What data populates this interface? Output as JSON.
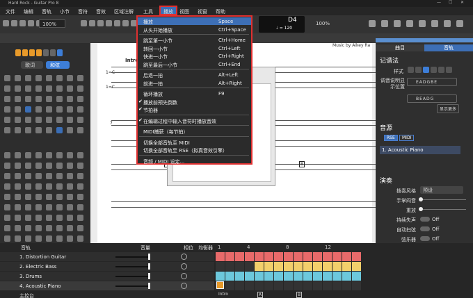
{
  "window": {
    "title": "Hard Rock - Guitar Pro 8"
  },
  "menu_bar": [
    "文件",
    "编辑",
    "音轨",
    "小节",
    "音符",
    "音效",
    "区域注解",
    "工具",
    "播放",
    "视图",
    "视窗",
    "帮助"
  ],
  "toolbar": {
    "zoom": "100%",
    "zoom_score": "100%",
    "pitch": "D4",
    "tempo": "♩ = 120"
  },
  "left_panel": {
    "lyrics_button": "歌词",
    "chord_button": "和弦"
  },
  "score": {
    "credit": "Music by Aikey Ra",
    "section": "Intro",
    "key": "1=C",
    "key2": "1=C",
    "bar_number": "7",
    "marker_a": "A",
    "marker_b": "B"
  },
  "play_menu": {
    "groups": [
      [
        {
          "label": "播放",
          "shortcut": "Space",
          "checked": false,
          "highlighted": true
        },
        {
          "label": "从头开始播放",
          "shortcut": "Ctrl+Space",
          "checked": false,
          "highlighted": false
        }
      ],
      [
        {
          "label": "跳至第一小节",
          "shortcut": "Ctrl+Home",
          "checked": false,
          "highlighted": false
        },
        {
          "label": "转回一小节",
          "shortcut": "Ctrl+Left",
          "checked": false,
          "highlighted": false
        },
        {
          "label": "快进一小节",
          "shortcut": "Ctrl+Right",
          "checked": false,
          "highlighted": false
        },
        {
          "label": "跳至最后一小节",
          "shortcut": "Ctrl+End",
          "checked": false,
          "highlighted": false
        }
      ],
      [
        {
          "label": "后退一拍",
          "shortcut": "Alt+Left",
          "checked": false,
          "highlighted": false
        },
        {
          "label": "前进一拍",
          "shortcut": "Alt+Right",
          "checked": false,
          "highlighted": false
        }
      ],
      [
        {
          "label": "循环播放",
          "shortcut": "F9",
          "checked": false,
          "highlighted": false
        },
        {
          "label": "播放前预先倒数",
          "checked": true,
          "highlighted": false
        },
        {
          "label": "节拍器",
          "checked": true,
          "highlighted": false
        }
      ],
      [
        {
          "label": "在编辑过程中输入音符时播放音效",
          "checked": true,
          "highlighted": false
        }
      ],
      [
        {
          "label": "MIDI捕获（每节拍）",
          "checked": false,
          "highlighted": false
        }
      ],
      [
        {
          "label": "切换全部音轨至 MIDI",
          "checked": false,
          "highlighted": false
        },
        {
          "label": "切换全部音轨至 RSE（拟真音效引擎）",
          "checked": false,
          "highlighted": false
        }
      ],
      [
        {
          "label": "音频 / MIDI 设定...",
          "checked": false,
          "highlighted": false
        }
      ]
    ]
  },
  "right_panel": {
    "tabs": [
      "曲目",
      "音轨"
    ],
    "notation_heading": "记谱法",
    "style_label": "样式",
    "tuning_label": "调音说明显示位置",
    "tunings": [
      "EADGBE",
      "BEADG"
    ],
    "show_more": "显示更多",
    "sound_heading": "音源",
    "sound_tabs": [
      "RSE",
      "MIDI"
    ],
    "instrument": "1. Acoustic Piano",
    "play_heading": "演奏",
    "controls": [
      {
        "label": "拨奏风格",
        "value": "预设"
      },
      {
        "label": "手掌闷音"
      },
      {
        "label": "重放"
      },
      {
        "label": "持续失声",
        "value": "Off"
      },
      {
        "label": "自动扫弦",
        "value": "Off"
      },
      {
        "label": "弦乐器",
        "value": "Off"
      }
    ]
  },
  "mixer": {
    "header": {
      "track": "音轨",
      "volume": "音量",
      "pan": "相位",
      "eq": "均衡器"
    },
    "tracks": [
      "1. Distortion Guitar",
      "2. Electric Bass",
      "3. Drums",
      "4. Acoustic Piano"
    ],
    "master": "主控台",
    "timeline_bars": [
      1,
      4,
      8,
      12
    ],
    "markers": [
      "Intro",
      "A",
      "B"
    ]
  }
}
